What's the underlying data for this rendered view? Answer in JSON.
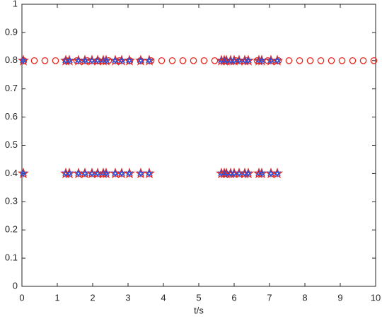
{
  "chart_data": {
    "type": "scatter",
    "xlabel": "t/s",
    "xlim": [
      0,
      10
    ],
    "xticks": [
      0,
      1,
      2,
      3,
      4,
      5,
      6,
      7,
      8,
      9,
      10
    ],
    "ylim": [
      0,
      1
    ],
    "yticks": [
      0,
      0.1,
      0.2,
      0.3,
      0.4,
      0.5,
      0.6,
      0.7,
      0.8,
      0.9,
      1
    ],
    "series": [
      {
        "marker": "circle",
        "color": "#e8281e",
        "x": [
          0.05,
          0.35,
          0.65,
          0.95,
          1.25,
          1.55,
          1.85,
          2.15,
          2.45,
          2.75,
          3.05,
          3.35,
          3.65,
          3.95,
          4.25,
          4.55,
          4.85,
          5.15,
          5.45,
          5.75,
          6.05,
          6.35,
          6.65,
          6.95,
          7.25,
          7.55,
          7.85,
          8.15,
          8.45,
          8.75,
          9.05,
          9.35,
          9.65,
          9.95
        ],
        "y": [
          0.8,
          0.8,
          0.8,
          0.8,
          0.8,
          0.8,
          0.8,
          0.8,
          0.8,
          0.8,
          0.8,
          0.8,
          0.8,
          0.8,
          0.8,
          0.8,
          0.8,
          0.8,
          0.8,
          0.8,
          0.8,
          0.8,
          0.8,
          0.8,
          0.8,
          0.8,
          0.8,
          0.8,
          0.8,
          0.8,
          0.8,
          0.8,
          0.8,
          0.8
        ]
      },
      {
        "marker": "pentagram-star",
        "color": "#e8281e",
        "inner_color": "#2b4fd6",
        "x": [
          0.04,
          1.24,
          1.34,
          1.6,
          1.78,
          1.98,
          2.14,
          2.3,
          2.38,
          2.64,
          2.82,
          3.04,
          3.36,
          3.6,
          5.64,
          5.72,
          5.78,
          5.9,
          6.0,
          6.14,
          6.3,
          6.4,
          6.7,
          6.78,
          7.04,
          7.22
        ],
        "y": [
          0.8,
          0.8,
          0.8,
          0.8,
          0.8,
          0.8,
          0.8,
          0.8,
          0.8,
          0.8,
          0.8,
          0.8,
          0.8,
          0.8,
          0.8,
          0.8,
          0.8,
          0.8,
          0.8,
          0.8,
          0.8,
          0.8,
          0.8,
          0.8,
          0.8,
          0.8
        ]
      },
      {
        "marker": "pentagram-star",
        "color": "#e8281e",
        "inner_color": "#2b4fd6",
        "x": [
          0.04,
          1.24,
          1.34,
          1.6,
          1.78,
          1.98,
          2.14,
          2.3,
          2.38,
          2.64,
          2.82,
          3.04,
          3.36,
          3.6,
          5.64,
          5.72,
          5.78,
          5.9,
          6.0,
          6.14,
          6.3,
          6.4,
          6.7,
          6.78,
          7.04,
          7.22
        ],
        "y": [
          0.4,
          0.4,
          0.4,
          0.4,
          0.4,
          0.4,
          0.4,
          0.4,
          0.4,
          0.4,
          0.4,
          0.4,
          0.4,
          0.4,
          0.4,
          0.4,
          0.4,
          0.4,
          0.4,
          0.4,
          0.4,
          0.4,
          0.4,
          0.4,
          0.4,
          0.4
        ]
      }
    ]
  }
}
